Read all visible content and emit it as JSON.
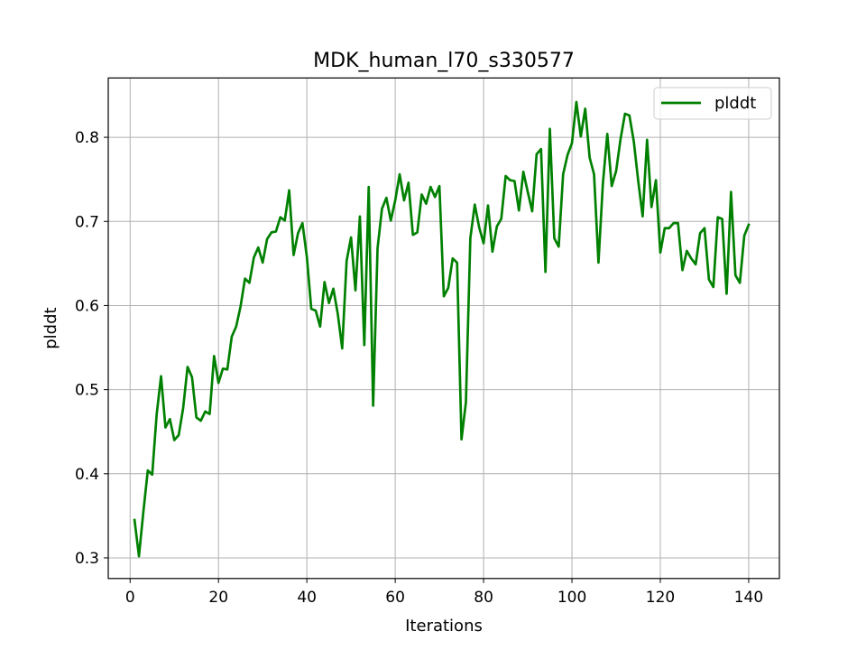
{
  "chart_data": {
    "type": "line",
    "title": "MDK_human_l70_s330577",
    "xlabel": "Iterations",
    "ylabel": "plddt",
    "xlim": [
      -4.95,
      146.95
    ],
    "ylim": [
      0.2755,
      0.8705
    ],
    "xticks": [
      0,
      20,
      40,
      60,
      80,
      100,
      120,
      140
    ],
    "yticks": [
      0.3,
      0.4,
      0.5,
      0.6,
      0.7,
      0.8
    ],
    "xtick_labels": [
      "0",
      "20",
      "40",
      "60",
      "80",
      "100",
      "120",
      "140"
    ],
    "ytick_labels": [
      "0.3",
      "0.4",
      "0.5",
      "0.6",
      "0.7",
      "0.8"
    ],
    "grid": true,
    "legend_position": "top-right",
    "series": [
      {
        "name": "plddt",
        "color": "#008000",
        "x": [
          1,
          2,
          3,
          4,
          5,
          6,
          7,
          8,
          9,
          10,
          11,
          12,
          13,
          14,
          15,
          16,
          17,
          18,
          19,
          20,
          21,
          22,
          23,
          24,
          25,
          26,
          27,
          28,
          29,
          30,
          31,
          32,
          33,
          34,
          35,
          36,
          37,
          38,
          39,
          40,
          41,
          42,
          43,
          44,
          45,
          46,
          47,
          48,
          49,
          50,
          51,
          52,
          53,
          54,
          55,
          56,
          57,
          58,
          59,
          60,
          61,
          62,
          63,
          64,
          65,
          66,
          67,
          68,
          69,
          70,
          71,
          72,
          73,
          74,
          75,
          76,
          77,
          78,
          79,
          80,
          81,
          82,
          83,
          84,
          85,
          86,
          87,
          88,
          89,
          90,
          91,
          92,
          93,
          94,
          95,
          96,
          97,
          98,
          99,
          100,
          101,
          102,
          103,
          104,
          105,
          106,
          107,
          108,
          109,
          110,
          111,
          112,
          113,
          114,
          115,
          116,
          117,
          118,
          119,
          120,
          121,
          122,
          123,
          124,
          125,
          126,
          127,
          128,
          129,
          130,
          131,
          132,
          133,
          134,
          135,
          136,
          137,
          138,
          139,
          140
        ],
        "y": [
          0.345,
          0.302,
          0.355,
          0.404,
          0.399,
          0.47,
          0.516,
          0.455,
          0.465,
          0.44,
          0.446,
          0.478,
          0.527,
          0.515,
          0.467,
          0.463,
          0.474,
          0.471,
          0.54,
          0.508,
          0.525,
          0.524,
          0.563,
          0.575,
          0.599,
          0.632,
          0.627,
          0.657,
          0.669,
          0.651,
          0.679,
          0.687,
          0.688,
          0.705,
          0.701,
          0.737,
          0.66,
          0.686,
          0.698,
          0.658,
          0.596,
          0.594,
          0.575,
          0.628,
          0.603,
          0.62,
          0.59,
          0.549,
          0.653,
          0.681,
          0.618,
          0.706,
          0.553,
          0.741,
          0.481,
          0.668,
          0.715,
          0.728,
          0.701,
          0.725,
          0.756,
          0.725,
          0.746,
          0.684,
          0.687,
          0.732,
          0.721,
          0.741,
          0.729,
          0.742,
          0.611,
          0.621,
          0.656,
          0.651,
          0.441,
          0.485,
          0.68,
          0.72,
          0.693,
          0.674,
          0.719,
          0.664,
          0.694,
          0.703,
          0.754,
          0.749,
          0.748,
          0.713,
          0.759,
          0.735,
          0.712,
          0.78,
          0.786,
          0.64,
          0.81,
          0.68,
          0.67,
          0.756,
          0.779,
          0.793,
          0.842,
          0.801,
          0.834,
          0.776,
          0.756,
          0.651,
          0.745,
          0.804,
          0.742,
          0.76,
          0.798,
          0.828,
          0.826,
          0.795,
          0.748,
          0.706,
          0.797,
          0.717,
          0.749,
          0.663,
          0.692,
          0.692,
          0.698,
          0.698,
          0.642,
          0.665,
          0.656,
          0.649,
          0.686,
          0.692,
          0.631,
          0.622,
          0.705,
          0.703,
          0.614,
          0.735,
          0.636,
          0.627,
          0.683,
          0.696
        ]
      }
    ]
  }
}
